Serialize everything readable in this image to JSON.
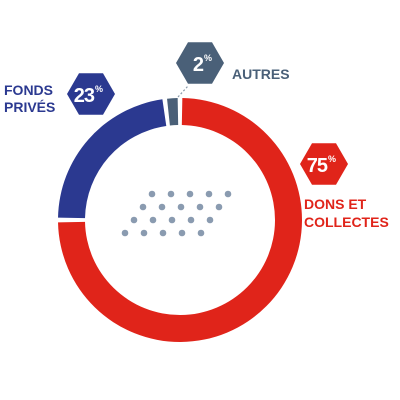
{
  "chart_data": {
    "type": "pie",
    "slices": [
      {
        "label_lines": [
          "DONS ET",
          "COLLECTES"
        ],
        "value": 75,
        "display": "75",
        "color": "#e0241a"
      },
      {
        "label_lines": [
          "FONDS",
          "PRIVÉS"
        ],
        "value": 23,
        "display": "23",
        "color": "#2b3990"
      },
      {
        "label_lines": [
          "AUTRES"
        ],
        "value": 2,
        "display": "2",
        "color": "#4a6078"
      }
    ],
    "percent_sign": "%",
    "connector_color": "#8a9aaa",
    "dot_color": "#8a9bb0"
  }
}
